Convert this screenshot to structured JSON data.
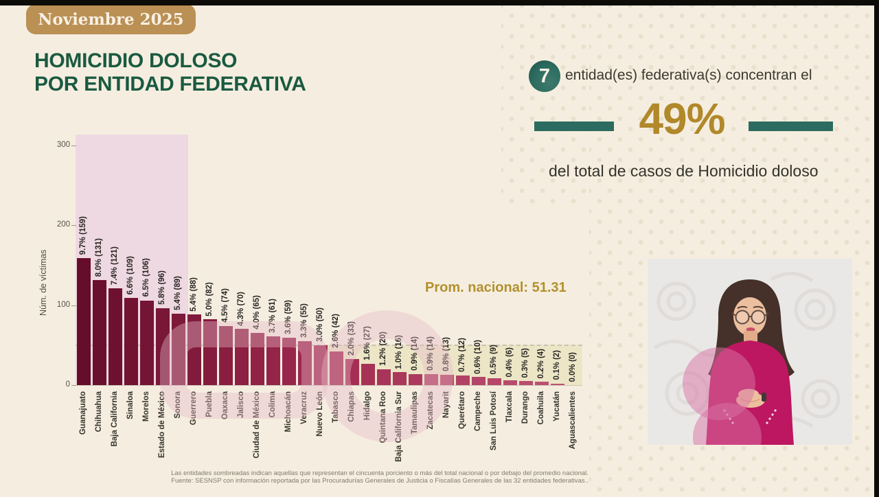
{
  "page": {
    "date_badge": "Noviembre 2025",
    "title_line1": "HOMICIDIO DOLOSO",
    "title_line2": "POR ENTIDAD FEDERATIVA"
  },
  "stat": {
    "count": "7",
    "line": "entidad(es) federativa(s) concentran el",
    "percent": "49%",
    "subtitle": "del total de casos de Homicidio doloso"
  },
  "chart_data": {
    "type": "bar",
    "ylabel": "Núm. de víctimas",
    "yticks": [
      0,
      100,
      200,
      300
    ],
    "ylim": [
      0,
      315
    ],
    "grid": false,
    "average_value": 51.31,
    "average_label": "Prom. nacional: 51.31",
    "highlighted_top_entities": 7,
    "categories": [
      "Guanajuato",
      "Chihuahua",
      "Baja California",
      "Sinaloa",
      "Morelos",
      "Estado de México",
      "Sonora",
      "Guerrero",
      "Puebla",
      "Oaxaca",
      "Jalisco",
      "Ciudad de México",
      "Colima",
      "Michoacán",
      "Veracruz",
      "Nuevo León",
      "Tabasco",
      "Chiapas",
      "Hidalgo",
      "Quintana Roo",
      "Baja California Sur",
      "Tamaulipas",
      "Zacatecas",
      "Nayarit",
      "Querétaro",
      "Campeche",
      "San Luis Potosí",
      "Tlaxcala",
      "Durango",
      "Coahuila",
      "Yucatán",
      "Aguascalientes"
    ],
    "values": [
      159,
      131,
      121,
      109,
      106,
      96,
      89,
      88,
      82,
      74,
      70,
      65,
      61,
      59,
      55,
      50,
      42,
      33,
      27,
      20,
      16,
      14,
      14,
      13,
      12,
      10,
      9,
      6,
      5,
      4,
      2,
      0
    ],
    "bar_labels": [
      "9.7% (159)",
      "8.0% (131)",
      "7.4% (121)",
      "6.6% (109)",
      "6.5% (106)",
      "5.8% (96)",
      "5.4% (89)",
      "5.4% (88)",
      "5.0% (82)",
      "4.5% (74)",
      "4.3% (70)",
      "4.0% (65)",
      "3.7% (61)",
      "3.6% (59)",
      "3.3% (55)",
      "3.0% (50)",
      "2.6% (42)",
      "2.0% (33)",
      "1.6% (27)",
      "1.2% (20)",
      "1.0% (16)",
      "0.9% (14)",
      "0.9% (14)",
      "0.8% (13)",
      "0.7% (12)",
      "0.6% (10)",
      "0.5% (9)",
      "0.4% (6)",
      "0.3% (5)",
      "0.2% (4)",
      "0.1% (2)",
      "0.0% (0)"
    ]
  },
  "footer": {
    "note": "Las entidades sombreadas indican aquellas que representan el cincuenta porciento o más del total nacional o por debajo del promedio nacional.",
    "source": "Fuente: SESNSP con información reportada por las Procuradurías Generales de Justicia o Fiscalías Generales de las 32 entidades federativas.."
  },
  "colors": {
    "background": "#f5eee0",
    "accent_teal": "#2c6b5f",
    "accent_gold": "#b1882a",
    "title_green": "#1a5a41",
    "badge_tan": "#bb9055",
    "top7_band": "#eed8e1",
    "below_avg_band": "#eae3c1",
    "bar_stops": [
      "#660d2b",
      "#a22b50",
      "#c05577"
    ]
  }
}
